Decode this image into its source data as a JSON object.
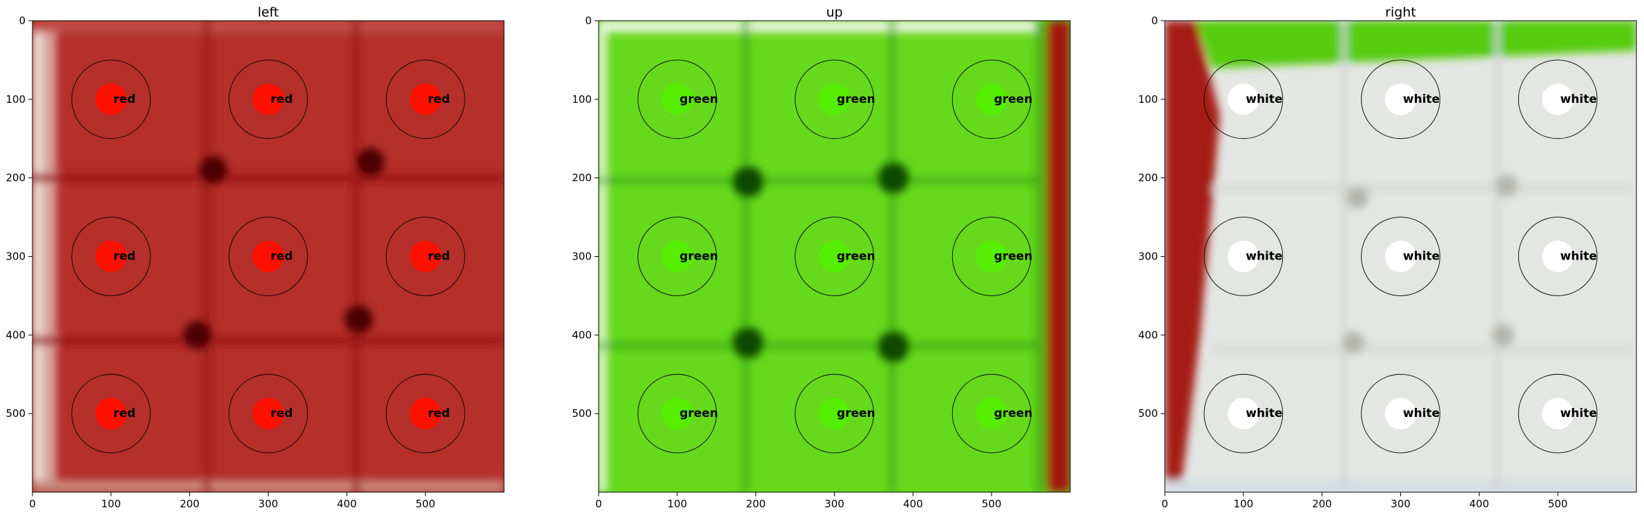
{
  "figure": {
    "background": "#ffffff"
  },
  "chart_data": [
    {
      "type": "heatmap",
      "title": "left",
      "xlabel": "",
      "ylabel": "",
      "xlim": [
        0,
        600
      ],
      "ylim": [
        600,
        0
      ],
      "xticks": [
        0,
        100,
        200,
        300,
        400,
        500
      ],
      "yticks": [
        0,
        100,
        200,
        300,
        400,
        500
      ],
      "image": {
        "base_color": "#b5302a",
        "edge_color": "#f2e4df",
        "line_color": "#9c1212",
        "dark_spot_color": "#4a0606"
      },
      "markers": [
        {
          "x": 100,
          "y": 100,
          "label": "red"
        },
        {
          "x": 300,
          "y": 100,
          "label": "red"
        },
        {
          "x": 500,
          "y": 100,
          "label": "red"
        },
        {
          "x": 100,
          "y": 300,
          "label": "red"
        },
        {
          "x": 300,
          "y": 300,
          "label": "red"
        },
        {
          "x": 500,
          "y": 300,
          "label": "red"
        },
        {
          "x": 100,
          "y": 500,
          "label": "red"
        },
        {
          "x": 300,
          "y": 500,
          "label": "red"
        },
        {
          "x": 500,
          "y": 500,
          "label": "red"
        }
      ],
      "marker_fill": "#ff1100",
      "circle_radius": 50,
      "dot_radius": 20
    },
    {
      "type": "heatmap",
      "title": "up",
      "xlabel": "",
      "ylabel": "",
      "xlim": [
        0,
        600
      ],
      "ylim": [
        600,
        0
      ],
      "xticks": [
        0,
        100,
        200,
        300,
        400,
        500
      ],
      "yticks": [
        0,
        100,
        200,
        300,
        400,
        500
      ],
      "image": {
        "base_color": "#66d91c",
        "edge_color": "#f4f7ee",
        "line_color": "#3ea812",
        "dark_spot_color": "#0c4a06",
        "strip_color": "#a31810"
      },
      "markers": [
        {
          "x": 100,
          "y": 100,
          "label": "green"
        },
        {
          "x": 300,
          "y": 100,
          "label": "green"
        },
        {
          "x": 500,
          "y": 100,
          "label": "green"
        },
        {
          "x": 100,
          "y": 300,
          "label": "green"
        },
        {
          "x": 300,
          "y": 300,
          "label": "green"
        },
        {
          "x": 500,
          "y": 300,
          "label": "green"
        },
        {
          "x": 100,
          "y": 500,
          "label": "green"
        },
        {
          "x": 300,
          "y": 500,
          "label": "green"
        },
        {
          "x": 500,
          "y": 500,
          "label": "green"
        }
      ],
      "marker_fill": "#55ee00",
      "circle_radius": 50,
      "dot_radius": 20
    },
    {
      "type": "heatmap",
      "title": "right",
      "xlabel": "",
      "ylabel": "",
      "xlim": [
        0,
        600
      ],
      "ylim": [
        600,
        0
      ],
      "xticks": [
        0,
        100,
        200,
        300,
        400,
        500
      ],
      "yticks": [
        0,
        100,
        200,
        300,
        400,
        500
      ],
      "image": {
        "base_color": "#e3e6e2",
        "edge_color": "#e7ebef",
        "line_color": "#d2d4cf",
        "dark_spot_color": "#b3b5ad",
        "strip_color": "#a51a14",
        "top_color": "#55cc0a"
      },
      "markers": [
        {
          "x": 100,
          "y": 100,
          "label": "white"
        },
        {
          "x": 300,
          "y": 100,
          "label": "white"
        },
        {
          "x": 500,
          "y": 100,
          "label": "white"
        },
        {
          "x": 100,
          "y": 300,
          "label": "white"
        },
        {
          "x": 300,
          "y": 300,
          "label": "white"
        },
        {
          "x": 500,
          "y": 300,
          "label": "white"
        },
        {
          "x": 100,
          "y": 500,
          "label": "white"
        },
        {
          "x": 300,
          "y": 500,
          "label": "white"
        },
        {
          "x": 500,
          "y": 500,
          "label": "white"
        }
      ],
      "marker_fill": "#ffffff",
      "circle_radius": 50,
      "dot_radius": 20
    }
  ]
}
